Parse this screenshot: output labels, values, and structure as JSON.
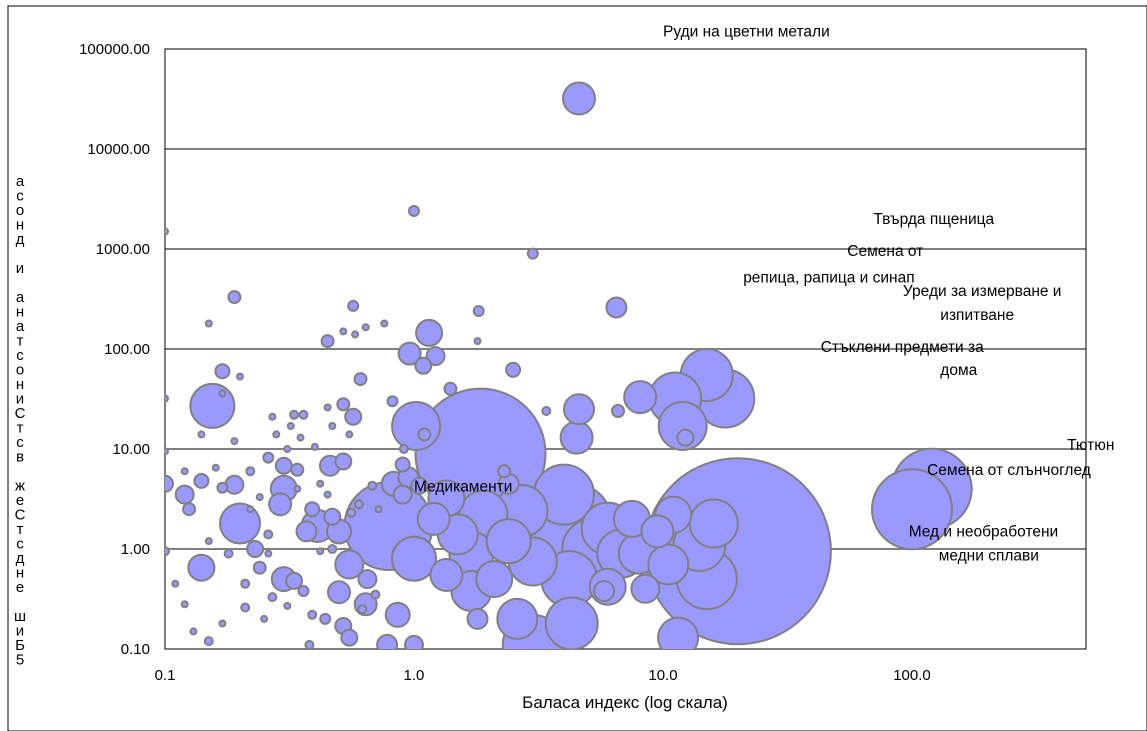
{
  "chart_data": {
    "type": "scatter",
    "style": "bubble",
    "bubble_color": "#9999ff",
    "bubble_stroke": "#808080",
    "x_scale": "log",
    "y_scale": "log",
    "xlim": [
      0.1,
      500
    ],
    "ylim": [
      0.1,
      100000
    ],
    "x_ticks": [
      0.1,
      1.0,
      10.0,
      100.0
    ],
    "x_tick_labels": [
      "0.1",
      "1.0",
      "10.0",
      "100.0"
    ],
    "y_ticks": [
      0.1,
      1,
      10,
      100,
      1000,
      10000,
      100000
    ],
    "y_tick_labels": [
      "0.10",
      "1.00",
      "10.00",
      "100.00",
      "1000.00",
      "10000.00",
      "100000.00"
    ],
    "grid": "horizontal",
    "legend": "none",
    "xlabel": "Баласа индекс (log скала)",
    "ylabel": "асонд и анатсониСтсв жеСтсдне шиБ5",
    "annotations": [
      "Руди на цветни метали",
      "Твърда пщеница",
      "Семена от",
      "репица, рапица и синап",
      "Уреди за измерване и",
      "изпитване",
      "Стъклени предмети за",
      "дома",
      "Тютюн",
      "Семена от слънчоглед",
      "Медикаменти",
      "Мед и необработени",
      "медни сплави"
    ],
    "points": [
      {
        "x": 4.6,
        "y": 32000,
        "r": 16
      },
      {
        "x": 1.0,
        "y": 2400,
        "r": 5
      },
      {
        "x": 0.1,
        "y": 1500,
        "r": 3
      },
      {
        "x": 3.0,
        "y": 900,
        "r": 5
      },
      {
        "x": 0.19,
        "y": 330,
        "r": 6
      },
      {
        "x": 0.57,
        "y": 270,
        "r": 5
      },
      {
        "x": 6.5,
        "y": 260,
        "r": 10
      },
      {
        "x": 1.82,
        "y": 240,
        "r": 5
      },
      {
        "x": 1.15,
        "y": 145,
        "r": 13
      },
      {
        "x": 0.15,
        "y": 180,
        "r": 3
      },
      {
        "x": 0.76,
        "y": 180,
        "r": 3
      },
      {
        "x": 0.45,
        "y": 120,
        "r": 6
      },
      {
        "x": 0.96,
        "y": 90,
        "r": 11
      },
      {
        "x": 1.22,
        "y": 85,
        "r": 9
      },
      {
        "x": 1.09,
        "y": 68,
        "r": 8
      },
      {
        "x": 2.5,
        "y": 62,
        "r": 7
      },
      {
        "x": 0.17,
        "y": 60,
        "r": 7
      },
      {
        "x": 0.61,
        "y": 50,
        "r": 6
      },
      {
        "x": 0.2,
        "y": 53,
        "r": 3
      },
      {
        "x": 0.155,
        "y": 27,
        "r": 22
      },
      {
        "x": 0.52,
        "y": 28,
        "r": 6
      },
      {
        "x": 0.57,
        "y": 21,
        "r": 8
      },
      {
        "x": 1.4,
        "y": 40,
        "r": 6
      },
      {
        "x": 1.85,
        "y": 9,
        "r": 65
      },
      {
        "x": 1.02,
        "y": 17,
        "r": 24
      },
      {
        "x": 0.82,
        "y": 30,
        "r": 5
      },
      {
        "x": 0.33,
        "y": 22,
        "r": 4
      },
      {
        "x": 0.27,
        "y": 21,
        "r": 3
      },
      {
        "x": 4.6,
        "y": 25,
        "r": 15
      },
      {
        "x": 4.5,
        "y": 13,
        "r": 16
      },
      {
        "x": 3.4,
        "y": 24,
        "r": 4
      },
      {
        "x": 6.6,
        "y": 24,
        "r": 6
      },
      {
        "x": 8.1,
        "y": 33,
        "r": 16
      },
      {
        "x": 15.0,
        "y": 55,
        "r": 26
      },
      {
        "x": 17.8,
        "y": 32,
        "r": 29
      },
      {
        "x": 11.2,
        "y": 32,
        "r": 26
      },
      {
        "x": 12.0,
        "y": 17,
        "r": 24
      },
      {
        "x": 12.3,
        "y": 13,
        "r": 8
      },
      {
        "x": 120.0,
        "y": 4.0,
        "r": 40
      },
      {
        "x": 100.0,
        "y": 2.5,
        "r": 40
      },
      {
        "x": 20.0,
        "y": 0.95,
        "r": 93
      },
      {
        "x": 0.1,
        "y": 4.5,
        "r": 8
      },
      {
        "x": 0.12,
        "y": 3.5,
        "r": 9
      },
      {
        "x": 0.14,
        "y": 4.8,
        "r": 7
      },
      {
        "x": 0.125,
        "y": 2.5,
        "r": 6
      },
      {
        "x": 0.17,
        "y": 4.1,
        "r": 5
      },
      {
        "x": 0.19,
        "y": 4.4,
        "r": 9
      },
      {
        "x": 0.2,
        "y": 1.8,
        "r": 20
      },
      {
        "x": 0.14,
        "y": 0.65,
        "r": 13
      },
      {
        "x": 0.23,
        "y": 1.0,
        "r": 8
      },
      {
        "x": 0.29,
        "y": 2.8,
        "r": 11
      },
      {
        "x": 0.3,
        "y": 4.0,
        "r": 13
      },
      {
        "x": 0.3,
        "y": 6.8,
        "r": 8
      },
      {
        "x": 0.26,
        "y": 8.2,
        "r": 5
      },
      {
        "x": 0.34,
        "y": 6.2,
        "r": 6
      },
      {
        "x": 0.3,
        "y": 0.5,
        "r": 12
      },
      {
        "x": 0.24,
        "y": 0.65,
        "r": 6
      },
      {
        "x": 0.33,
        "y": 0.48,
        "r": 8
      },
      {
        "x": 0.37,
        "y": 1.5,
        "r": 10
      },
      {
        "x": 0.41,
        "y": 1.7,
        "r": 16
      },
      {
        "x": 0.39,
        "y": 2.5,
        "r": 7
      },
      {
        "x": 0.46,
        "y": 6.8,
        "r": 10
      },
      {
        "x": 0.52,
        "y": 7.5,
        "r": 8
      },
      {
        "x": 0.47,
        "y": 2.1,
        "r": 8
      },
      {
        "x": 0.5,
        "y": 1.5,
        "r": 12
      },
      {
        "x": 0.55,
        "y": 0.7,
        "r": 14
      },
      {
        "x": 0.5,
        "y": 0.37,
        "r": 11
      },
      {
        "x": 0.52,
        "y": 0.17,
        "r": 8
      },
      {
        "x": 0.55,
        "y": 0.13,
        "r": 8
      },
      {
        "x": 0.64,
        "y": 0.28,
        "r": 11
      },
      {
        "x": 0.65,
        "y": 0.5,
        "r": 9
      },
      {
        "x": 0.79,
        "y": 1.7,
        "r": 44
      },
      {
        "x": 0.83,
        "y": 4.5,
        "r": 12
      },
      {
        "x": 0.95,
        "y": 5.2,
        "r": 10
      },
      {
        "x": 0.9,
        "y": 3.5,
        "r": 9
      },
      {
        "x": 1.0,
        "y": 0.8,
        "r": 22
      },
      {
        "x": 0.86,
        "y": 0.22,
        "r": 12
      },
      {
        "x": 0.78,
        "y": 0.11,
        "r": 10
      },
      {
        "x": 1.0,
        "y": 0.11,
        "r": 9
      },
      {
        "x": 1.2,
        "y": 2.0,
        "r": 16
      },
      {
        "x": 1.35,
        "y": 3.2,
        "r": 18
      },
      {
        "x": 1.5,
        "y": 1.4,
        "r": 20
      },
      {
        "x": 1.7,
        "y": 0.9,
        "r": 22
      },
      {
        "x": 1.9,
        "y": 2.2,
        "r": 24
      },
      {
        "x": 1.35,
        "y": 0.55,
        "r": 16
      },
      {
        "x": 1.7,
        "y": 0.38,
        "r": 20
      },
      {
        "x": 2.1,
        "y": 0.5,
        "r": 18
      },
      {
        "x": 1.8,
        "y": 0.2,
        "r": 10
      },
      {
        "x": 2.4,
        "y": 1.2,
        "r": 22
      },
      {
        "x": 2.7,
        "y": 2.4,
        "r": 26
      },
      {
        "x": 3.0,
        "y": 0.75,
        "r": 24
      },
      {
        "x": 3.5,
        "y": 1.5,
        "r": 32
      },
      {
        "x": 4.0,
        "y": 3.5,
        "r": 30
      },
      {
        "x": 4.5,
        "y": 2.0,
        "r": 34
      },
      {
        "x": 4.2,
        "y": 0.5,
        "r": 28
      },
      {
        "x": 4.3,
        "y": 0.18,
        "r": 26
      },
      {
        "x": 3.0,
        "y": 0.11,
        "r": 30
      },
      {
        "x": 5.2,
        "y": 1.0,
        "r": 30
      },
      {
        "x": 6.0,
        "y": 1.6,
        "r": 26
      },
      {
        "x": 6.8,
        "y": 0.9,
        "r": 24
      },
      {
        "x": 6.0,
        "y": 0.42,
        "r": 18
      },
      {
        "x": 7.5,
        "y": 2.0,
        "r": 18
      },
      {
        "x": 8.0,
        "y": 0.9,
        "r": 20
      },
      {
        "x": 8.5,
        "y": 0.4,
        "r": 14
      },
      {
        "x": 9.5,
        "y": 1.5,
        "r": 16
      },
      {
        "x": 10.5,
        "y": 0.7,
        "r": 20
      },
      {
        "x": 11.0,
        "y": 2.2,
        "r": 18
      },
      {
        "x": 11.5,
        "y": 0.13,
        "r": 20
      },
      {
        "x": 14.0,
        "y": 1.1,
        "r": 26
      },
      {
        "x": 15.0,
        "y": 0.5,
        "r": 30
      },
      {
        "x": 16.0,
        "y": 1.8,
        "r": 24
      },
      {
        "x": 2.6,
        "y": 0.2,
        "r": 20
      },
      {
        "x": 5.8,
        "y": 0.38,
        "r": 10
      },
      {
        "x": 0.11,
        "y": 0.45,
        "r": 3
      },
      {
        "x": 0.12,
        "y": 0.28,
        "r": 3
      },
      {
        "x": 0.13,
        "y": 0.15,
        "r": 3
      },
      {
        "x": 0.15,
        "y": 0.12,
        "r": 4
      },
      {
        "x": 0.17,
        "y": 0.18,
        "r": 3
      },
      {
        "x": 0.21,
        "y": 0.26,
        "r": 4
      },
      {
        "x": 0.21,
        "y": 0.45,
        "r": 4
      },
      {
        "x": 0.25,
        "y": 0.2,
        "r": 3
      },
      {
        "x": 0.27,
        "y": 0.33,
        "r": 4
      },
      {
        "x": 0.31,
        "y": 0.27,
        "r": 3
      },
      {
        "x": 0.36,
        "y": 0.38,
        "r": 5
      },
      {
        "x": 0.39,
        "y": 0.22,
        "r": 4
      },
      {
        "x": 0.38,
        "y": 0.11,
        "r": 4
      },
      {
        "x": 0.44,
        "y": 0.2,
        "r": 5
      },
      {
        "x": 0.1,
        "y": 0.95,
        "r": 4
      },
      {
        "x": 0.15,
        "y": 1.2,
        "r": 3
      },
      {
        "x": 0.18,
        "y": 0.9,
        "r": 4
      },
      {
        "x": 0.22,
        "y": 2.5,
        "r": 3
      },
      {
        "x": 0.24,
        "y": 3.3,
        "r": 3
      },
      {
        "x": 0.26,
        "y": 1.4,
        "r": 4
      },
      {
        "x": 0.26,
        "y": 0.9,
        "r": 3
      },
      {
        "x": 0.22,
        "y": 6.0,
        "r": 4
      },
      {
        "x": 0.16,
        "y": 6.5,
        "r": 3
      },
      {
        "x": 0.12,
        "y": 6.0,
        "r": 3
      },
      {
        "x": 0.1,
        "y": 9.5,
        "r": 3
      },
      {
        "x": 0.14,
        "y": 14,
        "r": 3
      },
      {
        "x": 0.19,
        "y": 12,
        "r": 3
      },
      {
        "x": 0.28,
        "y": 14,
        "r": 3
      },
      {
        "x": 0.31,
        "y": 10,
        "r": 3
      },
      {
        "x": 0.35,
        "y": 13,
        "r": 3
      },
      {
        "x": 0.32,
        "y": 17,
        "r": 3
      },
      {
        "x": 0.4,
        "y": 10.5,
        "r": 3
      },
      {
        "x": 0.34,
        "y": 4.0,
        "r": 3
      },
      {
        "x": 0.42,
        "y": 4.5,
        "r": 3
      },
      {
        "x": 0.45,
        "y": 3.5,
        "r": 3
      },
      {
        "x": 0.47,
        "y": 1.0,
        "r": 4
      },
      {
        "x": 0.42,
        "y": 0.95,
        "r": 3
      },
      {
        "x": 0.6,
        "y": 2.8,
        "r": 4
      },
      {
        "x": 0.56,
        "y": 2.3,
        "r": 4
      },
      {
        "x": 0.62,
        "y": 0.25,
        "r": 4
      },
      {
        "x": 0.7,
        "y": 0.35,
        "r": 4
      },
      {
        "x": 0.47,
        "y": 17,
        "r": 3
      },
      {
        "x": 0.55,
        "y": 14,
        "r": 3
      },
      {
        "x": 0.17,
        "y": 36,
        "r": 3
      },
      {
        "x": 0.36,
        "y": 22,
        "r": 4
      },
      {
        "x": 0.45,
        "y": 26,
        "r": 3
      },
      {
        "x": 0.64,
        "y": 165,
        "r": 3
      },
      {
        "x": 0.52,
        "y": 150,
        "r": 3
      },
      {
        "x": 0.58,
        "y": 140,
        "r": 3
      },
      {
        "x": 0.1,
        "y": 32,
        "r": 3
      },
      {
        "x": 0.9,
        "y": 7.0,
        "r": 7
      },
      {
        "x": 1.05,
        "y": 4.3,
        "r": 8
      },
      {
        "x": 0.68,
        "y": 4.3,
        "r": 4
      },
      {
        "x": 0.72,
        "y": 2.5,
        "r": 3
      },
      {
        "x": 1.1,
        "y": 14,
        "r": 6
      },
      {
        "x": 0.91,
        "y": 10,
        "r": 4
      },
      {
        "x": 1.8,
        "y": 120,
        "r": 3
      },
      {
        "x": 2.3,
        "y": 6.0,
        "r": 6
      },
      {
        "x": 2.4,
        "y": 4.5,
        "r": 10
      }
    ]
  }
}
